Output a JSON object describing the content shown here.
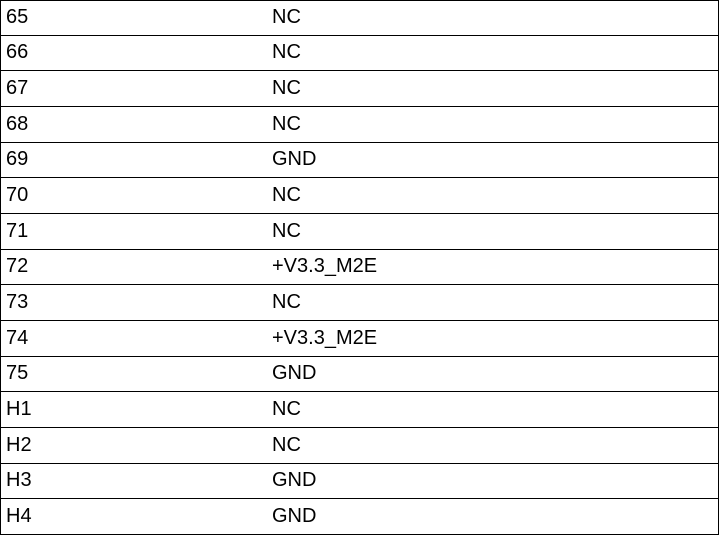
{
  "table": {
    "rows": [
      [
        "65",
        "NC"
      ],
      [
        "66",
        "NC"
      ],
      [
        "67",
        "NC"
      ],
      [
        "68",
        "NC"
      ],
      [
        "69",
        "GND"
      ],
      [
        "70",
        "NC"
      ],
      [
        "71",
        "NC"
      ],
      [
        "72",
        "+V3.3_M2E"
      ],
      [
        "73",
        "NC"
      ],
      [
        "74",
        "+V3.3_M2E"
      ],
      [
        "75",
        "GND"
      ],
      [
        "H1",
        "NC"
      ],
      [
        "H2",
        "NC"
      ],
      [
        "H3",
        "GND"
      ],
      [
        "H4",
        "GND"
      ]
    ]
  }
}
